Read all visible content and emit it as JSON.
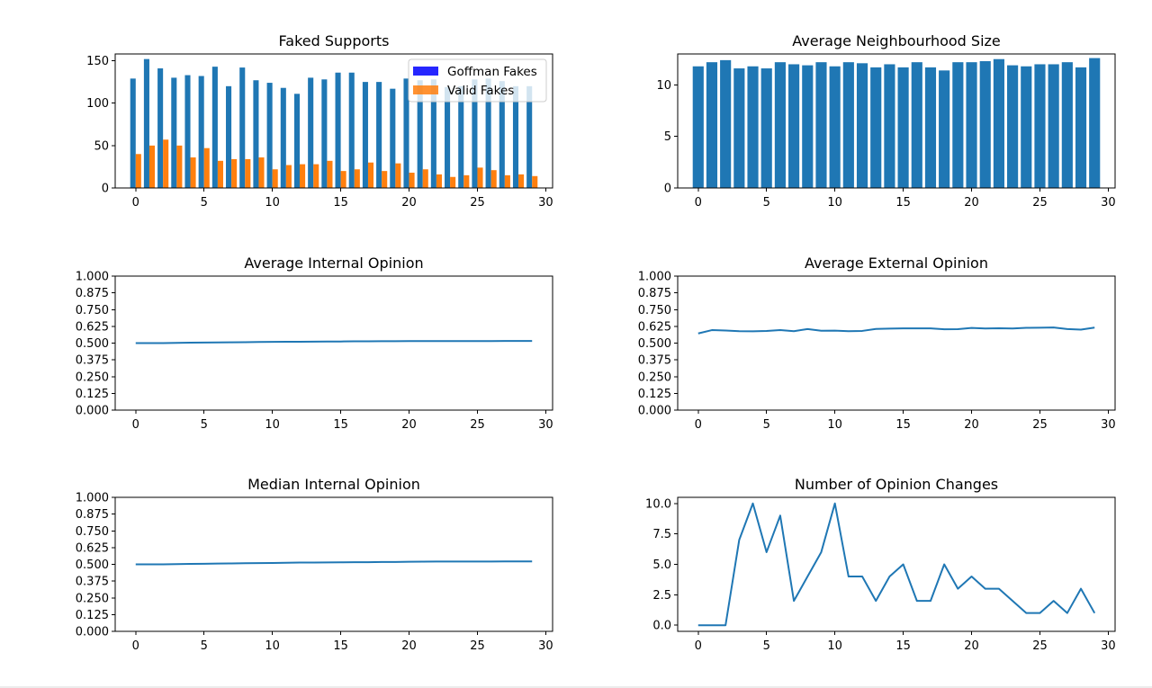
{
  "colors": {
    "blue": "#1f77b4",
    "orange": "#ff7f0e",
    "legend_blue": "#0000ff",
    "legend_orange": "#ff7f0e"
  },
  "chart_data": [
    {
      "id": "faked-supports",
      "type": "bar",
      "title": "Faked Supports",
      "x": [
        0,
        1,
        2,
        3,
        4,
        5,
        6,
        7,
        8,
        9,
        10,
        11,
        12,
        13,
        14,
        15,
        16,
        17,
        18,
        19,
        20,
        21,
        22,
        23,
        24,
        25,
        26,
        27,
        28,
        29
      ],
      "series": [
        {
          "name": "Goffman Fakes",
          "values": [
            129,
            152,
            141,
            130,
            133,
            132,
            143,
            120,
            142,
            127,
            124,
            118,
            111,
            130,
            128,
            136,
            136,
            125,
            125,
            117,
            129,
            127,
            128,
            119,
            120,
            128,
            129,
            126,
            120,
            120
          ]
        },
        {
          "name": "Valid Fakes",
          "values": [
            40,
            50,
            57,
            50,
            36,
            47,
            32,
            34,
            34,
            36,
            22,
            27,
            28,
            28,
            32,
            20,
            22,
            30,
            20,
            29,
            18,
            22,
            16,
            13,
            15,
            24,
            21,
            15,
            16,
            14
          ]
        }
      ],
      "xlim": [
        -1.5,
        30.5
      ],
      "ylim": [
        0,
        158
      ],
      "xticks": [
        0,
        5,
        10,
        15,
        20,
        25,
        30
      ],
      "yticks": [
        0,
        50,
        100,
        150
      ],
      "legend": "top-right"
    },
    {
      "id": "avg-neighbourhood-size",
      "type": "bar",
      "title": "Average Neighbourhood Size",
      "x": [
        0,
        1,
        2,
        3,
        4,
        5,
        6,
        7,
        8,
        9,
        10,
        11,
        12,
        13,
        14,
        15,
        16,
        17,
        18,
        19,
        20,
        21,
        22,
        23,
        24,
        25,
        26,
        27,
        28,
        29
      ],
      "values": [
        11.8,
        12.2,
        12.4,
        11.6,
        11.8,
        11.6,
        12.2,
        12.0,
        11.9,
        12.2,
        11.8,
        12.2,
        12.1,
        11.7,
        12.0,
        11.7,
        12.2,
        11.7,
        11.4,
        12.2,
        12.2,
        12.3,
        12.5,
        11.9,
        11.8,
        12.0,
        12.0,
        12.2,
        11.7,
        12.6
      ],
      "xlim": [
        -1.5,
        30.5
      ],
      "ylim": [
        0,
        13.0
      ],
      "xticks": [
        0,
        5,
        10,
        15,
        20,
        25,
        30
      ],
      "yticks": [
        0,
        5,
        10
      ]
    },
    {
      "id": "avg-internal-opinion",
      "type": "line",
      "title": "Average Internal Opinion",
      "x": [
        0,
        1,
        2,
        3,
        4,
        5,
        6,
        7,
        8,
        9,
        10,
        11,
        12,
        13,
        14,
        15,
        16,
        17,
        18,
        19,
        20,
        21,
        22,
        23,
        24,
        25,
        26,
        27,
        28,
        29
      ],
      "values": [
        0.5,
        0.5,
        0.5,
        0.502,
        0.503,
        0.504,
        0.505,
        0.506,
        0.507,
        0.508,
        0.509,
        0.51,
        0.51,
        0.511,
        0.512,
        0.512,
        0.513,
        0.513,
        0.514,
        0.514,
        0.515,
        0.515,
        0.515,
        0.515,
        0.515,
        0.515,
        0.515,
        0.516,
        0.516,
        0.516
      ],
      "xlim": [
        -1.5,
        30.5
      ],
      "ylim": [
        0,
        1
      ],
      "xticks": [
        0,
        5,
        10,
        15,
        20,
        25,
        30
      ],
      "yticks": [
        0,
        0.125,
        0.25,
        0.375,
        0.5,
        0.625,
        0.75,
        0.875,
        1
      ],
      "ytick_labels": [
        "0.000",
        "0.125",
        "0.250",
        "0.375",
        "0.500",
        "0.625",
        "0.750",
        "0.875",
        "1.000"
      ]
    },
    {
      "id": "avg-external-opinion",
      "type": "line",
      "title": "Average External Opinion",
      "x": [
        0,
        1,
        2,
        3,
        4,
        5,
        6,
        7,
        8,
        9,
        10,
        11,
        12,
        13,
        14,
        15,
        16,
        17,
        18,
        19,
        20,
        21,
        22,
        23,
        24,
        25,
        26,
        27,
        28,
        29
      ],
      "values": [
        0.572,
        0.597,
        0.594,
        0.589,
        0.588,
        0.591,
        0.597,
        0.589,
        0.605,
        0.592,
        0.593,
        0.589,
        0.591,
        0.606,
        0.608,
        0.61,
        0.61,
        0.61,
        0.603,
        0.604,
        0.613,
        0.609,
        0.611,
        0.609,
        0.614,
        0.615,
        0.617,
        0.605,
        0.601,
        0.616
      ],
      "xlim": [
        -1.5,
        30.5
      ],
      "ylim": [
        0,
        1
      ],
      "xticks": [
        0,
        5,
        10,
        15,
        20,
        25,
        30
      ],
      "yticks": [
        0,
        0.125,
        0.25,
        0.375,
        0.5,
        0.625,
        0.75,
        0.875,
        1
      ],
      "ytick_labels": [
        "0.000",
        "0.125",
        "0.250",
        "0.375",
        "0.500",
        "0.625",
        "0.750",
        "0.875",
        "1.000"
      ]
    },
    {
      "id": "median-internal-opinion",
      "type": "line",
      "title": "Median Internal Opinion",
      "x": [
        0,
        1,
        2,
        3,
        4,
        5,
        6,
        7,
        8,
        9,
        10,
        11,
        12,
        13,
        14,
        15,
        16,
        17,
        18,
        19,
        20,
        21,
        22,
        23,
        24,
        25,
        26,
        27,
        28,
        29
      ],
      "values": [
        0.5,
        0.5,
        0.5,
        0.502,
        0.503,
        0.504,
        0.506,
        0.507,
        0.508,
        0.509,
        0.51,
        0.512,
        0.513,
        0.513,
        0.514,
        0.515,
        0.516,
        0.516,
        0.518,
        0.518,
        0.519,
        0.52,
        0.521,
        0.521,
        0.521,
        0.521,
        0.521,
        0.522,
        0.522,
        0.522
      ],
      "xlim": [
        -1.5,
        30.5
      ],
      "ylim": [
        0,
        1
      ],
      "xticks": [
        0,
        5,
        10,
        15,
        20,
        25,
        30
      ],
      "yticks": [
        0,
        0.125,
        0.25,
        0.375,
        0.5,
        0.625,
        0.75,
        0.875,
        1
      ],
      "ytick_labels": [
        "0.000",
        "0.125",
        "0.250",
        "0.375",
        "0.500",
        "0.625",
        "0.750",
        "0.875",
        "1.000"
      ]
    },
    {
      "id": "num-opinion-changes",
      "type": "line",
      "title": "Number of Opinion Changes",
      "x": [
        0,
        1,
        2,
        3,
        4,
        5,
        6,
        7,
        8,
        9,
        10,
        11,
        12,
        13,
        14,
        15,
        16,
        17,
        18,
        19,
        20,
        21,
        22,
        23,
        24,
        25,
        26,
        27,
        28,
        29
      ],
      "values": [
        0,
        0,
        0,
        7,
        10,
        6,
        9,
        2,
        4,
        6,
        10,
        4,
        4,
        2,
        4,
        5,
        2,
        2,
        5,
        3,
        4,
        3,
        3,
        2,
        1,
        1,
        2,
        1,
        3,
        1
      ],
      "xlim": [
        -1.5,
        30.5
      ],
      "ylim": [
        -0.5,
        10.5
      ],
      "xticks": [
        0,
        5,
        10,
        15,
        20,
        25,
        30
      ],
      "yticks": [
        0,
        2.5,
        5,
        7.5,
        10
      ],
      "ytick_labels": [
        "0.0",
        "2.5",
        "5.0",
        "7.5",
        "10.0"
      ]
    }
  ]
}
